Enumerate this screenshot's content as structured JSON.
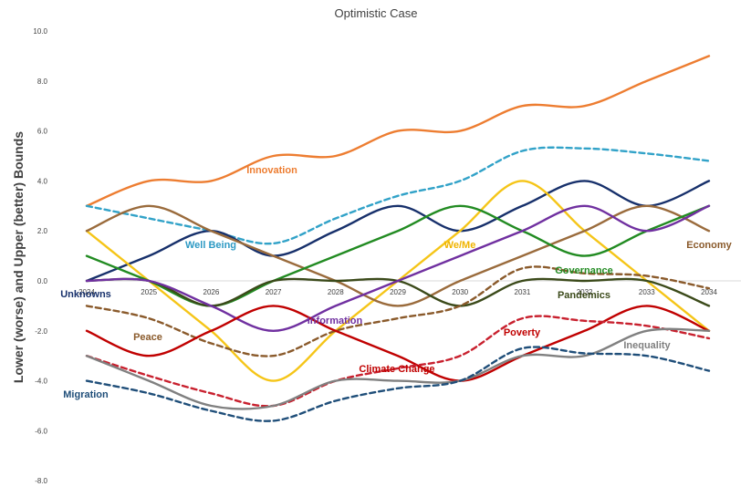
{
  "chart_data": {
    "type": "line",
    "title": "Optimistic Case",
    "ylabel": "Lower (worse) and Upper (better) Bounds",
    "xlabel": "",
    "x": [
      "2024",
      "2025",
      "2026",
      "2027",
      "2028",
      "2029",
      "2030",
      "2031",
      "2032",
      "2033",
      "2034"
    ],
    "y_ticks": [
      "10.0",
      "8.0",
      "6.0",
      "4.0",
      "2.0",
      "0.0",
      "-2.0",
      "-4.0",
      "-6.0",
      "-8.0"
    ],
    "ylim": [
      -8,
      10
    ],
    "grid": false,
    "series": [
      {
        "name": "Innovation",
        "color": "#ed7d31",
        "dash": false,
        "values": [
          3.0,
          4.0,
          4.0,
          5.0,
          5.0,
          6.0,
          6.0,
          7.0,
          7.0,
          8.0,
          9.0
        ]
      },
      {
        "name": "Well Being",
        "color": "#31a2c8",
        "dash": true,
        "values": [
          3.0,
          2.5,
          2.0,
          1.5,
          2.5,
          3.4,
          4.0,
          5.2,
          5.3,
          5.1,
          4.8
        ]
      },
      {
        "name": "Unknowns",
        "color": "#17306b",
        "dash": false,
        "values": [
          0.0,
          1.0,
          2.0,
          1.0,
          2.0,
          3.0,
          2.0,
          3.0,
          4.0,
          3.0,
          4.0
        ]
      },
      {
        "name": "We/Me",
        "color": "#f5c518",
        "dash": false,
        "values": [
          2.0,
          0.0,
          -2.0,
          -4.0,
          -2.0,
          0.0,
          2.0,
          4.0,
          2.0,
          0.0,
          -2.0
        ]
      },
      {
        "name": "Economy",
        "color": "#9a6b3c",
        "dash": false,
        "values": [
          2.0,
          3.0,
          2.0,
          1.0,
          0.0,
          -1.0,
          0.0,
          1.0,
          2.0,
          3.0,
          2.0
        ]
      },
      {
        "name": "Governance",
        "color": "#228b22",
        "dash": false,
        "values": [
          1.0,
          0.0,
          -1.0,
          0.0,
          1.0,
          2.0,
          3.0,
          2.0,
          1.0,
          2.0,
          3.0
        ]
      },
      {
        "name": "Pandemics",
        "color": "#3b4a1a",
        "dash": false,
        "values": [
          0.0,
          0.0,
          -1.0,
          0.0,
          0.0,
          0.0,
          -1.0,
          0.0,
          0.0,
          0.0,
          -1.0
        ]
      },
      {
        "name": "Information",
        "color": "#7030a0",
        "dash": false,
        "values": [
          0.0,
          0.0,
          -1.0,
          -2.0,
          -1.0,
          0.0,
          1.0,
          2.0,
          3.0,
          2.0,
          3.0
        ]
      },
      {
        "name": "Peace",
        "color": "#8a5a2b",
        "dash": true,
        "values": [
          -1.0,
          -1.5,
          -2.5,
          -3.0,
          -2.0,
          -1.5,
          -1.0,
          0.5,
          0.3,
          0.2,
          -0.3
        ]
      },
      {
        "name": "Poverty",
        "color": "#c00000",
        "dash": false,
        "values": [
          -2.0,
          -3.0,
          -2.0,
          -1.0,
          -2.0,
          -3.0,
          -4.0,
          -3.0,
          -2.0,
          -1.0,
          -2.0
        ]
      },
      {
        "name": "Climate Change",
        "color": "#c8202e",
        "dash": true,
        "values": [
          -3.0,
          -3.8,
          -4.5,
          -5.0,
          -4.0,
          -3.5,
          -3.0,
          -1.5,
          -1.6,
          -1.8,
          -2.3
        ]
      },
      {
        "name": "Inequality",
        "color": "#808080",
        "dash": false,
        "values": [
          -3.0,
          -4.0,
          -5.0,
          -5.0,
          -4.0,
          -4.0,
          -4.0,
          -3.0,
          -3.0,
          -2.0,
          -2.0
        ]
      },
      {
        "name": "Migration",
        "color": "#1f4e79",
        "dash": true,
        "values": [
          -4.0,
          -4.5,
          -5.2,
          -5.6,
          -4.8,
          -4.3,
          -4.0,
          -2.7,
          -2.9,
          -3.0,
          -3.6
        ]
      }
    ],
    "labels": [
      {
        "text": "Innovation",
        "color": "#ed7d31"
      },
      {
        "text": "Well Being",
        "color": "#2e9ac4"
      },
      {
        "text": "Unknowns",
        "color": "#17306b"
      },
      {
        "text": "We/Me",
        "color": "#f0b400"
      },
      {
        "text": "Economy",
        "color": "#8a5a2b"
      },
      {
        "text": "Governance",
        "color": "#228b22"
      },
      {
        "text": "Pandemics",
        "color": "#3b4a1a"
      },
      {
        "text": "Information",
        "color": "#7030a0"
      },
      {
        "text": "Peace",
        "color": "#8a5a2b"
      },
      {
        "text": "Poverty",
        "color": "#c00000"
      },
      {
        "text": "Climate Change",
        "color": "#c00000"
      },
      {
        "text": "Inequality",
        "color": "#808080"
      },
      {
        "text": "Migration",
        "color": "#1f4e79"
      }
    ]
  }
}
